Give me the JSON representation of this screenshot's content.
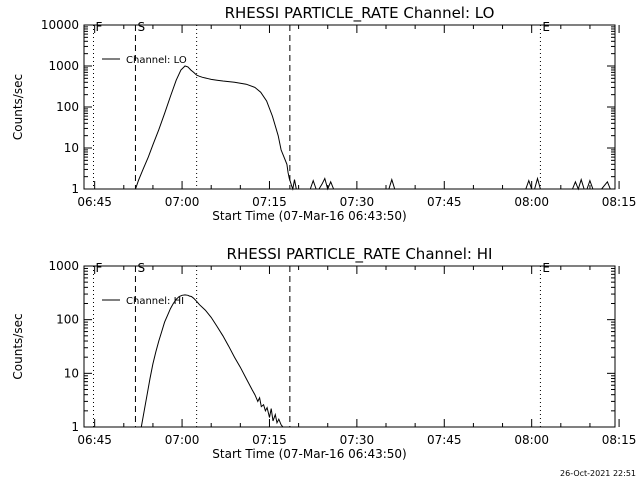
{
  "footer_timestamp": "26-Oct-2021 22:51",
  "chart_data": [
    {
      "type": "line",
      "title": "RHESSI PARTICLE_RATE Channel: LO",
      "xlabel": "Start Time (07-Mar-16 06:43:50)",
      "ylabel": "Counts/sec",
      "yscale": "log",
      "ylim": [
        1,
        10000
      ],
      "yticks": [
        {
          "v": 1,
          "label": "1"
        },
        {
          "v": 10,
          "label": "10"
        },
        {
          "v": 100,
          "label": "100"
        },
        {
          "v": 1000,
          "label": "1000"
        },
        {
          "v": 10000,
          "label": "10000"
        }
      ],
      "xlim_minutes": [
        -1.83,
        89.3
      ],
      "xticks": [
        {
          "v": 0,
          "label": "06:45"
        },
        {
          "v": 15,
          "label": "07:00"
        },
        {
          "v": 30,
          "label": "07:15"
        },
        {
          "v": 45,
          "label": "07:30"
        },
        {
          "v": 60,
          "label": "07:45"
        },
        {
          "v": 75,
          "label": "08:00"
        },
        {
          "v": 90,
          "label": "08:15"
        }
      ],
      "x_units": "minutes since 06:45",
      "markers": [
        {
          "label": "F",
          "t": -0.2,
          "style": "dotted"
        },
        {
          "label": "S",
          "t": 7.0,
          "style": "dashed"
        },
        {
          "label": "",
          "t": 17.5,
          "style": "dotted"
        },
        {
          "label": "",
          "t": 33.5,
          "style": "dashed"
        },
        {
          "label": "E",
          "t": 76.5,
          "style": "dotted"
        },
        {
          "label": "",
          "t": 93.5,
          "style": "dotted"
        }
      ],
      "legend": "Channel: LO",
      "series": [
        {
          "name": "Channel: LO",
          "x": [
            7.0,
            7.5,
            8.3,
            9.2,
            10.0,
            11.0,
            12.0,
            13.0,
            14.0,
            14.8,
            15.5,
            16.0,
            16.5,
            17.0,
            17.5,
            18.0,
            18.5,
            19.0,
            19.5,
            20.0,
            21.0,
            22.0,
            24.0,
            26.0,
            27.5,
            28.5,
            29.5,
            30.5,
            31.5,
            32.0,
            32.5,
            33.0,
            33.2,
            33.4,
            33.6,
            33.8,
            34.0,
            34.3,
            34.6,
            35.0,
            35.5,
            36.0,
            36.5,
            37.0,
            37.5,
            38.0,
            38.5,
            39.0,
            39.5,
            40.0,
            40.5,
            41.0,
            41.5,
            42.0,
            42.5,
            43.0,
            43.5,
            44.0,
            44.5,
            45.0,
            45.5,
            46.0,
            46.5,
            47.0,
            47.5,
            48.0,
            48.5,
            49.0,
            49.5,
            50.0,
            50.5,
            51.0,
            51.5,
            52.0,
            52.5,
            53.0,
            55.0,
            60.0,
            65.0,
            70.0,
            74.0,
            74.5,
            75.0,
            75.5,
            76.0,
            76.5,
            77.0,
            77.5,
            78.0,
            80.0,
            82.0,
            82.5,
            83.0,
            83.5,
            84.0,
            84.5,
            85.0,
            85.5,
            86.0,
            87.0,
            88.0,
            88.5,
            89.0,
            89.3
          ],
          "y": [
            1,
            1.6,
            3,
            6,
            12,
            28,
            70,
            180,
            450,
            800,
            1000,
            950,
            800,
            700,
            600,
            560,
            530,
            510,
            490,
            470,
            450,
            430,
            400,
            360,
            300,
            230,
            140,
            60,
            20,
            9,
            6,
            4,
            2.5,
            1.8,
            1.5,
            1.2,
            1,
            1.7,
            1,
            1,
            1,
            1,
            1,
            1,
            1.6,
            1,
            1,
            1.3,
            1.8,
            1,
            1.5,
            1,
            1,
            1,
            1,
            1,
            1,
            1,
            1,
            1,
            1,
            1,
            1,
            1,
            1,
            1,
            1,
            1,
            1,
            1,
            1,
            1.7,
            1,
            1,
            1,
            1,
            1,
            1,
            1,
            1,
            1,
            1.6,
            1,
            1,
            1.8,
            1,
            1,
            1,
            1,
            1,
            1,
            1.5,
            1,
            1.7,
            1,
            1,
            1.6,
            1,
            1,
            1,
            1.5,
            1,
            1,
            1
          ]
        }
      ]
    },
    {
      "type": "line",
      "title": "RHESSI PARTICLE_RATE Channel: HI",
      "xlabel": "Start Time (07-Mar-16 06:43:50)",
      "ylabel": "Counts/sec",
      "yscale": "log",
      "ylim": [
        1,
        1000
      ],
      "yticks": [
        {
          "v": 1,
          "label": "1"
        },
        {
          "v": 10,
          "label": "10"
        },
        {
          "v": 100,
          "label": "100"
        },
        {
          "v": 1000,
          "label": "1000"
        }
      ],
      "xlim_minutes": [
        -1.83,
        89.3
      ],
      "xticks": [
        {
          "v": 0,
          "label": "06:45"
        },
        {
          "v": 15,
          "label": "07:00"
        },
        {
          "v": 30,
          "label": "07:15"
        },
        {
          "v": 45,
          "label": "07:30"
        },
        {
          "v": 60,
          "label": "07:45"
        },
        {
          "v": 75,
          "label": "08:00"
        },
        {
          "v": 90,
          "label": "08:15"
        }
      ],
      "x_units": "minutes since 06:45",
      "markers": [
        {
          "label": "F",
          "t": -0.2,
          "style": "dotted"
        },
        {
          "label": "S",
          "t": 7.0,
          "style": "dashed"
        },
        {
          "label": "",
          "t": 17.5,
          "style": "dotted"
        },
        {
          "label": "",
          "t": 33.5,
          "style": "dashed"
        },
        {
          "label": "E",
          "t": 76.5,
          "style": "dotted"
        },
        {
          "label": "",
          "t": 93.5,
          "style": "dotted"
        }
      ],
      "legend": "Channel: HI",
      "series": [
        {
          "name": "Channel: HI",
          "x": [
            8.0,
            8.5,
            9.0,
            9.5,
            10.0,
            10.5,
            11.0,
            11.5,
            12.0,
            12.5,
            13.0,
            13.5,
            14.0,
            14.5,
            15.0,
            15.5,
            16.0,
            16.3,
            16.6,
            17.0,
            17.5,
            18.0,
            19.0,
            20.0,
            21.0,
            22.0,
            23.0,
            24.0,
            25.0,
            26.0,
            27.0,
            27.5,
            28.0,
            28.3,
            28.6,
            29.0,
            29.3,
            29.6,
            30.0,
            30.3,
            30.6,
            31.0,
            31.3,
            31.6,
            32.0,
            32.3
          ],
          "y": [
            1,
            2,
            4,
            8,
            15,
            25,
            40,
            60,
            90,
            120,
            160,
            200,
            240,
            270,
            285,
            290,
            285,
            275,
            270,
            250,
            220,
            190,
            150,
            110,
            75,
            50,
            32,
            20,
            13,
            8,
            5,
            4,
            3,
            3.5,
            2.4,
            2.6,
            2.0,
            2.3,
            1.5,
            2.2,
            1.3,
            1.7,
            1.2,
            1.4,
            1.1,
            1
          ]
        }
      ]
    }
  ]
}
